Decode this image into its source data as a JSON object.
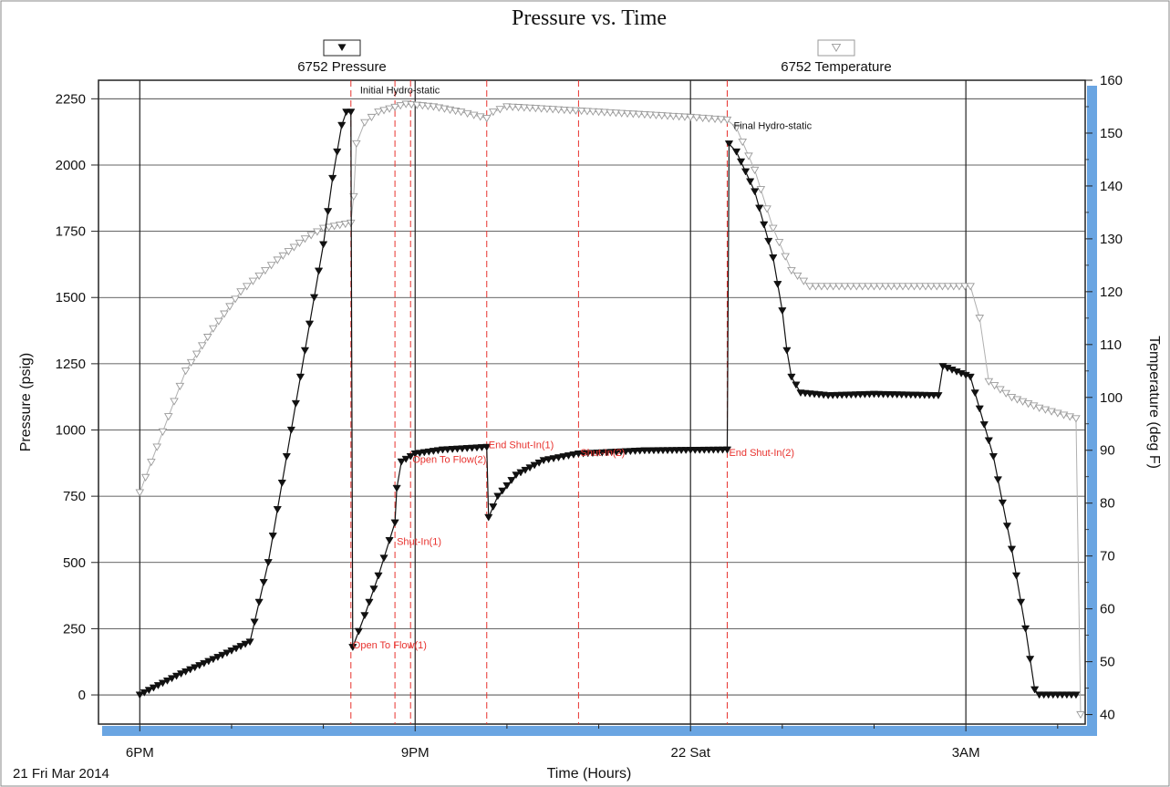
{
  "chart_data": {
    "type": "line",
    "title": "Pressure vs. Time",
    "xlabel": "Time (Hours)",
    "date_label": "21 Fri Mar 2014",
    "x_ticks": [
      {
        "hour": 18,
        "label": "6PM"
      },
      {
        "hour": 21,
        "label": "9PM"
      },
      {
        "hour": 24,
        "label": "22 Sat"
      },
      {
        "hour": 27,
        "label": "3AM"
      }
    ],
    "x_minor_hours": [
      19,
      20,
      22,
      23,
      25,
      26,
      28
    ],
    "xlim": [
      17.55,
      28.3
    ],
    "y_left": {
      "label": "Pressure (psig)",
      "ylim": [
        -110,
        2320
      ],
      "ticks": [
        0,
        250,
        500,
        750,
        1000,
        1250,
        1500,
        1750,
        2000,
        2250
      ]
    },
    "y_right": {
      "label": "Temperature (deg F)",
      "ylim": [
        38.2,
        160
      ],
      "ticks": [
        40,
        50,
        60,
        70,
        80,
        90,
        100,
        110,
        120,
        130,
        140,
        150,
        160
      ]
    },
    "legend": [
      {
        "name": "6752 Pressure",
        "marker": "filled-triangle-down",
        "color": "#111111"
      },
      {
        "name": "6752 Temperature",
        "marker": "open-triangle-down",
        "color": "#a0a0a0"
      }
    ],
    "event_lines": [
      {
        "hour": 20.3,
        "label": "Open To Flow(1)",
        "pressure": 190
      },
      {
        "hour": 20.78,
        "label": "Shut-In(1)",
        "pressure": 580
      },
      {
        "hour": 20.95,
        "label": "Open To Flow(2)",
        "pressure": 890
      },
      {
        "hour": 21.78,
        "label": "End Shut-In(1)",
        "pressure": 945
      },
      {
        "hour": 22.78,
        "label": "Shut-In(2)",
        "pressure": 915
      },
      {
        "hour": 24.4,
        "label": "End Shut-In(2)",
        "pressure": 915
      }
    ],
    "annotations": [
      {
        "hour": 20.4,
        "pressure": 2270,
        "label": "Initial Hydro-static"
      },
      {
        "hour": 24.47,
        "pressure": 2135,
        "label": "Final Hydro-static"
      }
    ],
    "series": [
      {
        "name": "6752 Pressure",
        "axis": "left",
        "points": [
          [
            18.0,
            0
          ],
          [
            18.45,
            80
          ],
          [
            18.9,
            150
          ],
          [
            19.2,
            200
          ],
          [
            19.4,
            500
          ],
          [
            19.6,
            900
          ],
          [
            19.8,
            1300
          ],
          [
            20.0,
            1700
          ],
          [
            20.1,
            1950
          ],
          [
            20.15,
            2050
          ],
          [
            20.2,
            2150
          ],
          [
            20.25,
            2200
          ],
          [
            20.3,
            2200
          ],
          [
            20.32,
            180
          ],
          [
            20.45,
            300
          ],
          [
            20.6,
            450
          ],
          [
            20.78,
            650
          ],
          [
            20.8,
            780
          ],
          [
            20.85,
            880
          ],
          [
            21.0,
            910
          ],
          [
            21.3,
            925
          ],
          [
            21.78,
            935
          ],
          [
            21.8,
            670
          ],
          [
            21.9,
            750
          ],
          [
            22.1,
            830
          ],
          [
            22.4,
            885
          ],
          [
            22.78,
            910
          ],
          [
            23.5,
            922
          ],
          [
            24.4,
            925
          ],
          [
            24.42,
            2080
          ],
          [
            24.5,
            2050
          ],
          [
            24.7,
            1900
          ],
          [
            24.9,
            1650
          ],
          [
            25.0,
            1450
          ],
          [
            25.05,
            1300
          ],
          [
            25.1,
            1200
          ],
          [
            25.2,
            1140
          ],
          [
            25.5,
            1130
          ],
          [
            26.0,
            1135
          ],
          [
            26.7,
            1130
          ],
          [
            26.75,
            1240
          ],
          [
            27.05,
            1200
          ],
          [
            27.3,
            900
          ],
          [
            27.5,
            550
          ],
          [
            27.65,
            250
          ],
          [
            27.75,
            20
          ],
          [
            27.8,
            0
          ],
          [
            28.2,
            0
          ]
        ]
      },
      {
        "name": "6752 Temperature",
        "axis": "right",
        "points": [
          [
            18.0,
            82
          ],
          [
            18.5,
            105
          ],
          [
            18.8,
            113
          ],
          [
            19.1,
            120
          ],
          [
            19.5,
            126
          ],
          [
            19.8,
            130
          ],
          [
            20.0,
            132
          ],
          [
            20.3,
            133
          ],
          [
            20.33,
            138
          ],
          [
            20.36,
            148
          ],
          [
            20.45,
            152
          ],
          [
            20.6,
            154
          ],
          [
            20.9,
            155.5
          ],
          [
            21.2,
            155
          ],
          [
            21.5,
            154
          ],
          [
            21.78,
            152.8
          ],
          [
            21.85,
            154
          ],
          [
            22.0,
            155
          ],
          [
            22.5,
            154.5
          ],
          [
            23.0,
            154
          ],
          [
            23.5,
            153.5
          ],
          [
            24.0,
            153
          ],
          [
            24.4,
            152.5
          ],
          [
            24.5,
            151
          ],
          [
            24.7,
            143
          ],
          [
            24.9,
            132
          ],
          [
            25.1,
            124
          ],
          [
            25.3,
            121
          ],
          [
            26.0,
            121
          ],
          [
            26.5,
            121
          ],
          [
            27.05,
            121
          ],
          [
            27.15,
            115
          ],
          [
            27.25,
            103
          ],
          [
            27.5,
            100
          ],
          [
            27.8,
            98
          ],
          [
            28.2,
            96
          ],
          [
            28.25,
            40
          ]
        ]
      }
    ]
  }
}
